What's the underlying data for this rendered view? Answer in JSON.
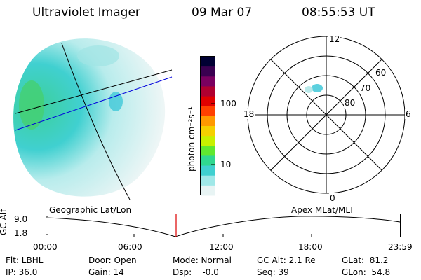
{
  "header": {
    "instrument": "Ultraviolet Imager",
    "date": "09 Mar 07",
    "time": "08:55:53 UT"
  },
  "colorbar": {
    "unit_label": "photon cm⁻²s⁻¹",
    "ticks": [
      "100",
      "10"
    ],
    "colors": [
      "#000033",
      "#3a0050",
      "#7a0060",
      "#b00030",
      "#e00000",
      "#ff4000",
      "#ff9900",
      "#f5d000",
      "#c8f000",
      "#60e830",
      "#30d890",
      "#40d0d0",
      "#a0e8e8",
      "#e8f4f4"
    ]
  },
  "polar_plot": {
    "labels": {
      "top": "12",
      "bottom": "0",
      "left": "18",
      "right": "6"
    },
    "lat_labels": [
      "60",
      "70",
      "80"
    ]
  },
  "timeline": {
    "left_title": "Geographic Lat/Lon",
    "right_title": "Apex MLat/MLT",
    "y_axis_label": "GC Alt",
    "y_ticks": [
      "9.0",
      "1.8"
    ],
    "x_ticks": [
      "00:00",
      "06:00",
      "12:00",
      "18:00",
      "23:59"
    ],
    "marker_color": "#dd0000"
  },
  "info": {
    "filter": "Flt: LBHL",
    "ip": "IP: 36.0",
    "door": "Door: Open",
    "gain": "Gain: 14",
    "mode": "Mode: Normal",
    "dsp": "Dsp:    -0.0",
    "gc_alt": "GC Alt: 2.1 Re",
    "seq": "Seq: 39",
    "glat": "GLat:  81.2",
    "glon": "GLon:  54.8"
  }
}
